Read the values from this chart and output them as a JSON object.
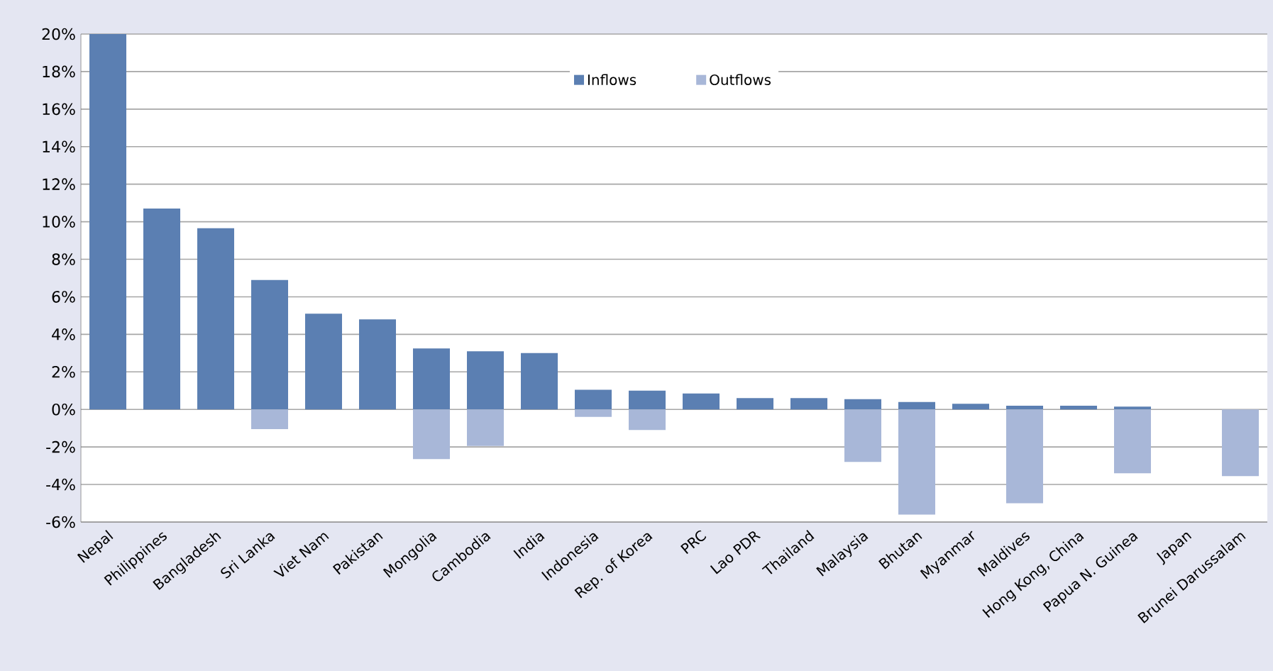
{
  "chart_data": {
    "type": "bar",
    "categories": [
      "Nepal",
      "Philippines",
      "Bangladesh",
      "Sri Lanka",
      "Viet Nam",
      "Pakistan",
      "Mongolia",
      "Cambodia",
      "India",
      "Indonesia",
      "Rep. of Korea",
      "PRC",
      "Lao PDR",
      "Thailand",
      "Malaysia",
      "Bhutan",
      "Myanmar",
      "Maldives",
      "Hong Kong, China",
      "Papua N. Guinea",
      "Japan",
      "Brunei Darussalam"
    ],
    "series": [
      {
        "name": "Inflows",
        "color": "#5b7fb2",
        "values": [
          20,
          10.7,
          9.65,
          6.9,
          5.1,
          4.8,
          3.25,
          3.1,
          3.0,
          1.05,
          1.0,
          0.85,
          0.6,
          0.6,
          0.55,
          0.4,
          0.3,
          0.2,
          0.2,
          0.15,
          null,
          null
        ]
      },
      {
        "name": "Outflows",
        "color": "#a8b7d8",
        "values": [
          null,
          null,
          null,
          -1.05,
          null,
          null,
          -2.65,
          -1.95,
          null,
          -0.4,
          -1.1,
          null,
          null,
          null,
          -2.8,
          -5.6,
          null,
          -5.0,
          null,
          -3.4,
          null,
          -3.55
        ]
      }
    ],
    "ylim": [
      -6,
      20
    ],
    "yticks": [
      {
        "value": -6,
        "label": "-6%"
      },
      {
        "value": -4,
        "label": "-4%"
      },
      {
        "value": -2,
        "label": "-2%"
      },
      {
        "value": 0,
        "label": "0%"
      },
      {
        "value": 2,
        "label": "2%"
      },
      {
        "value": 4,
        "label": "4%"
      },
      {
        "value": 6,
        "label": "6%"
      },
      {
        "value": 8,
        "label": "8%"
      },
      {
        "value": 10,
        "label": "10%"
      },
      {
        "value": 12,
        "label": "12%"
      },
      {
        "value": 14,
        "label": "14%"
      },
      {
        "value": 16,
        "label": "16%"
      },
      {
        "value": 18,
        "label": "18%"
      },
      {
        "value": 20,
        "label": "20%"
      }
    ],
    "grid": "y",
    "legend": "top"
  }
}
